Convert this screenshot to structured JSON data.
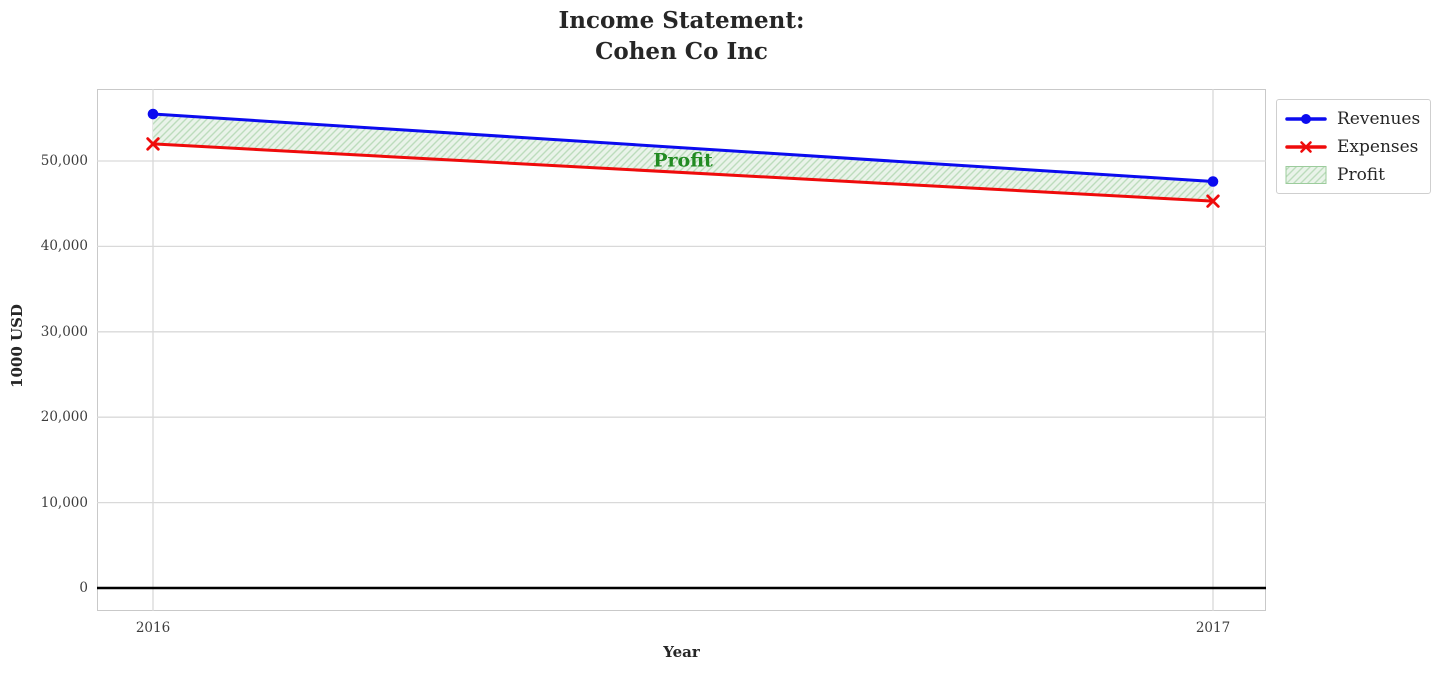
{
  "title": {
    "line1": "Income Statement:",
    "line2": "Cohen Co Inc"
  },
  "axes": {
    "x_label": "Year",
    "y_label": "1000 USD",
    "x_ticks": [
      "2016",
      "2017"
    ],
    "y_ticks": [
      "0",
      "10,000",
      "20,000",
      "30,000",
      "40,000",
      "50,000"
    ]
  },
  "legend": {
    "items": [
      {
        "label": "Revenues",
        "swatch": "line-circle",
        "color": "#0b0bef"
      },
      {
        "label": "Expenses",
        "swatch": "line-x",
        "color": "#ef0b0b"
      },
      {
        "label": "Profit",
        "swatch": "hatched-patch",
        "color": "#bcdcbc"
      }
    ]
  },
  "annotation": {
    "text": "Profit",
    "color": "#228B22"
  },
  "chart_data": {
    "type": "line",
    "title": "Income Statement:\nCohen Co Inc",
    "xlabel": "Year",
    "ylabel": "1000 USD",
    "x": [
      2016,
      2017
    ],
    "series": [
      {
        "name": "Revenues",
        "values": [
          55500,
          47600
        ],
        "color": "#0b0bef",
        "marker": "circle",
        "line_width": 3
      },
      {
        "name": "Expenses",
        "values": [
          52000,
          45300
        ],
        "color": "#ef0b0b",
        "marker": "x",
        "line_width": 3
      }
    ],
    "fill_between": {
      "label": "Profit",
      "upper": "Revenues",
      "lower": "Expenses",
      "profit_values": [
        3500,
        2300
      ],
      "fill_color": "#e9f3e9",
      "hatch_color": "#bcdcbc",
      "hatch_edge_color": "#9ccc9c",
      "hatch": "//"
    },
    "annotation": {
      "text": "Profit",
      "x_mid": true,
      "y": 50100,
      "color": "#228B22"
    },
    "y_tick_values": [
      0,
      10000,
      20000,
      30000,
      40000,
      50000
    ],
    "ylim": [
      -2700,
      58400
    ],
    "grid": true,
    "grid_color": "#d9d9d9",
    "zero_line": true,
    "zero_line_color": "#000000",
    "legend_position": "outside-upper-right"
  }
}
